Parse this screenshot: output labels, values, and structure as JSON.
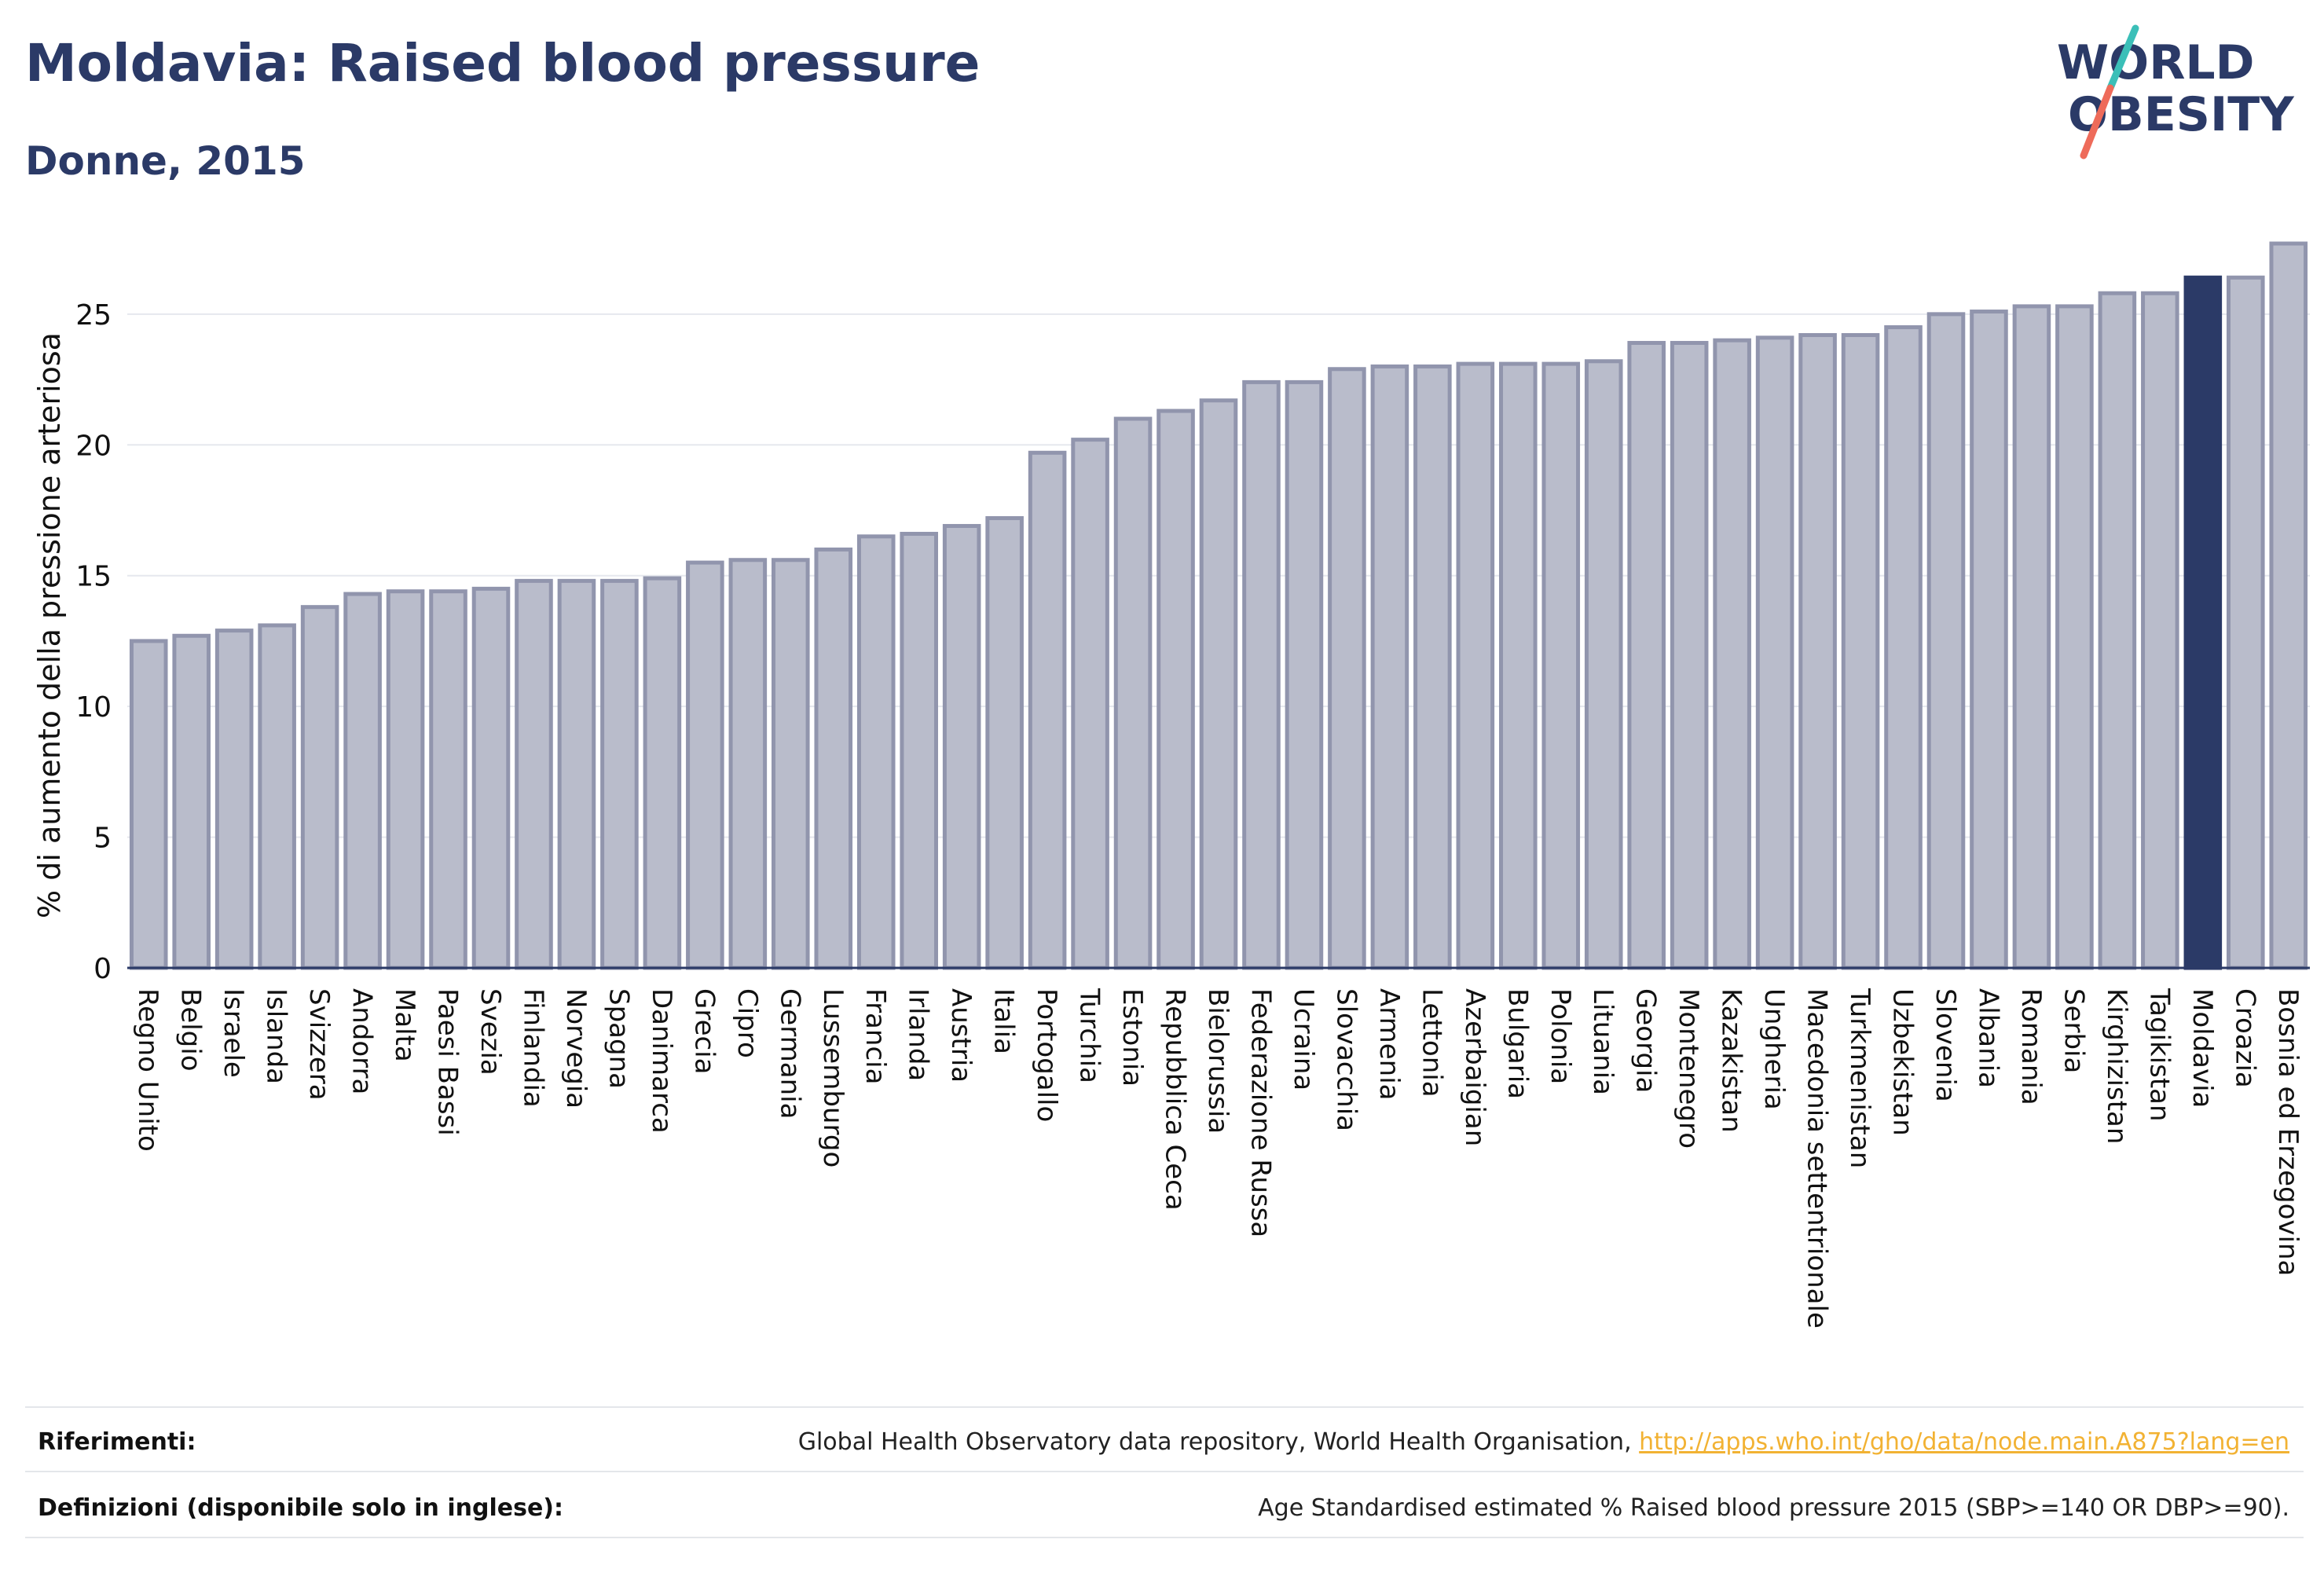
{
  "header": {
    "title": "Moldavia: Raised blood pressure",
    "subtitle": "Donne, 2015"
  },
  "logo": {
    "line1": "WORLD",
    "line2": "OBESITY",
    "colors": {
      "text": "#2b3a67",
      "slash_teal": "#3bbfb8",
      "slash_coral": "#ee6b5a"
    }
  },
  "colors": {
    "bar_default": "#b9bccb",
    "bar_default_stroke": "#9195ad",
    "bar_highlight": "#2b3a67",
    "grid": "#e6e8ee",
    "axis_text": "#111111",
    "link": "#f2b233"
  },
  "chart_data": {
    "type": "bar",
    "title": "",
    "xlabel": "",
    "ylabel": "% di aumento della pressione arteriosa",
    "ylim": [
      0,
      28
    ],
    "yticks": [
      0,
      5,
      10,
      15,
      20,
      25
    ],
    "grid": true,
    "highlight": "Moldavia",
    "categories": [
      "Regno Unito",
      "Belgio",
      "Israele",
      "Islanda",
      "Svizzera",
      "Andorra",
      "Malta",
      "Paesi Bassi",
      "Svezia",
      "Finlandia",
      "Norvegia",
      "Spagna",
      "Danimarca",
      "Grecia",
      "Cipro",
      "Germania",
      "Lussemburgo",
      "Francia",
      "Irlanda",
      "Austria",
      "Italia",
      "Portogallo",
      "Turchia",
      "Estonia",
      "Repubblica Ceca",
      "Bielorussia",
      "Federazione Russa",
      "Ucraina",
      "Slovacchia",
      "Armenia",
      "Lettonia",
      "Azerbaigian",
      "Bulgaria",
      "Polonia",
      "Lituania",
      "Georgia",
      "Montenegro",
      "Kazakistan",
      "Ungheria",
      "Macedonia settentrionale",
      "Turkmenistan",
      "Uzbekistan",
      "Slovenia",
      "Albania",
      "Romania",
      "Serbia",
      "Kirghizistan",
      "Tagikistan",
      "Moldavia",
      "Croazia",
      "Bosnia ed Erzegovina"
    ],
    "values": [
      12.5,
      12.7,
      12.9,
      13.1,
      13.8,
      14.3,
      14.4,
      14.4,
      14.5,
      14.8,
      14.8,
      14.8,
      14.9,
      15.5,
      15.6,
      15.6,
      16.0,
      16.5,
      16.6,
      16.9,
      17.2,
      19.7,
      20.2,
      21.0,
      21.3,
      21.7,
      22.4,
      22.4,
      22.9,
      23.0,
      23.0,
      23.1,
      23.1,
      23.1,
      23.2,
      23.9,
      23.9,
      24.0,
      24.1,
      24.2,
      24.2,
      24.5,
      25.0,
      25.1,
      25.3,
      25.3,
      25.8,
      25.8,
      26.4,
      26.4,
      27.7
    ]
  },
  "footer": {
    "references_label": "Riferimenti:",
    "references_text": "Global Health Observatory data repository, World Health Organisation, ",
    "references_link": "http://apps.who.int/gho/data/node.main.A875?lang=en",
    "definitions_label": "Definizioni (disponibile solo in inglese):",
    "definitions_text": "Age Standardised estimated % Raised blood pressure 2015 (SBP>=140 OR DBP>=90)."
  }
}
